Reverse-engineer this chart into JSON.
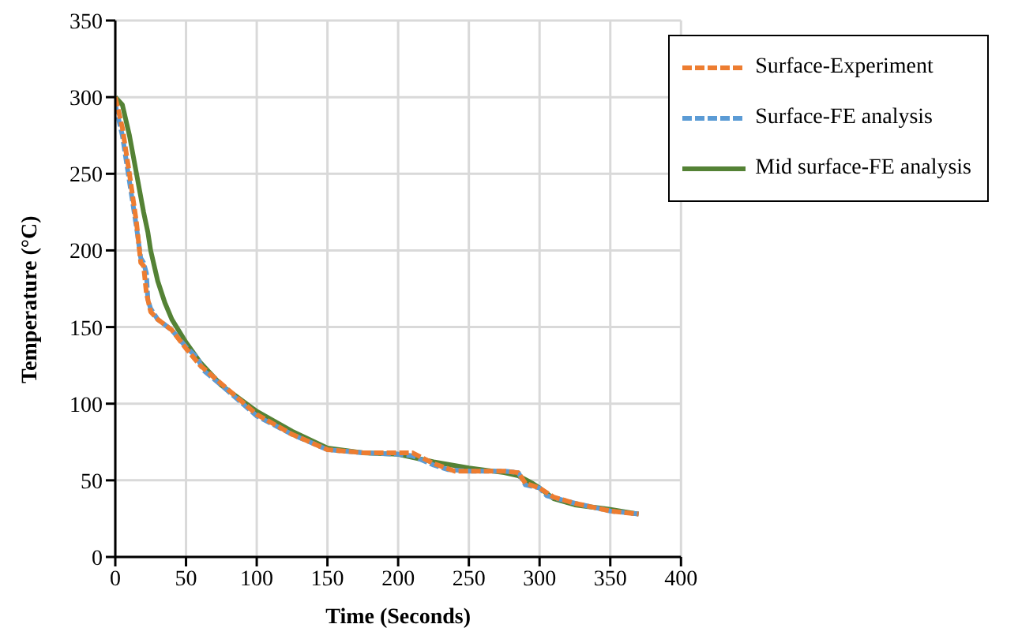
{
  "chart_data": {
    "type": "line",
    "xlabel": "Time (Seconds)",
    "ylabel": "Temperature (°C)",
    "xlim": [
      0,
      400
    ],
    "xticks": [
      0,
      50,
      100,
      150,
      200,
      250,
      300,
      350,
      400
    ],
    "ylim": [
      0,
      350
    ],
    "yticks": [
      0,
      50,
      100,
      150,
      200,
      250,
      300,
      350
    ],
    "grid": true,
    "legend": "top right",
    "marker": "none",
    "series": [
      {
        "name": "Surface-Experiment",
        "color": "#ed7d31",
        "line_style": "dashed",
        "x": [
          0,
          5,
          10,
          15,
          18,
          20,
          22,
          25,
          30,
          40,
          50,
          60,
          75,
          100,
          125,
          150,
          175,
          200,
          210,
          225,
          240,
          275,
          285,
          290,
          300,
          310,
          325,
          350,
          370
        ],
        "values": [
          300,
          280,
          250,
          218,
          192,
          190,
          172,
          160,
          155,
          148,
          136,
          125,
          113,
          93,
          80,
          70,
          68,
          68,
          68,
          61,
          56,
          56,
          55,
          48,
          45,
          39,
          35,
          30,
          28
        ]
      },
      {
        "name": "Surface-FE analysis",
        "color": "#5b9bd5",
        "line_style": "dashed",
        "x": [
          0,
          5,
          10,
          15,
          18,
          20,
          22,
          23,
          25,
          30,
          40,
          50,
          58,
          62,
          75,
          100,
          125,
          150,
          175,
          200,
          210,
          225,
          235,
          250,
          275,
          285,
          290,
          295,
          300,
          305,
          325,
          350,
          370
        ],
        "values": [
          295,
          275,
          245,
          215,
          195,
          192,
          185,
          168,
          162,
          155,
          148,
          137,
          130,
          122,
          112,
          92,
          80,
          70,
          68,
          67,
          66,
          60,
          57,
          56,
          56,
          55,
          47,
          46,
          45,
          40,
          35,
          30,
          28
        ]
      },
      {
        "name": "Mid surface-FE analysis",
        "color": "#548235",
        "line_style": "solid",
        "x": [
          0,
          5,
          10,
          15,
          20,
          23,
          25,
          30,
          35,
          40,
          50,
          60,
          75,
          100,
          125,
          150,
          175,
          200,
          225,
          250,
          275,
          285,
          295,
          300,
          310,
          325,
          350,
          370
        ],
        "values": [
          300,
          295,
          275,
          250,
          225,
          212,
          200,
          180,
          166,
          155,
          140,
          127,
          112,
          95,
          82,
          71,
          68,
          67,
          62,
          58,
          55,
          53,
          48,
          45,
          38,
          34,
          31,
          28
        ]
      }
    ]
  }
}
